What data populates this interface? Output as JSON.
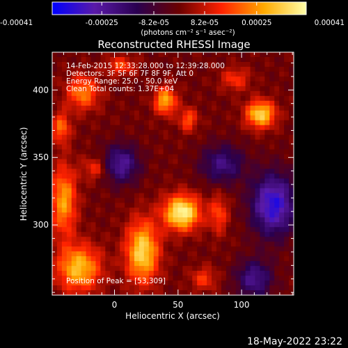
{
  "chart_data": {
    "type": "heatmap",
    "title": "Reconstructed RHESSI Image",
    "xlabel": "Heliocentric X (arcsec)",
    "ylabel": "Heliocentric Y (arcsec)",
    "xlim": [
      -49,
      141
    ],
    "ylim": [
      248,
      428
    ],
    "xticks": [
      0,
      50,
      100
    ],
    "yticks": [
      300,
      350,
      400
    ],
    "colorbar": {
      "range": [
        -0.00041,
        0.00041
      ],
      "tick_labels": [
        "-0.00041",
        "-0.00025",
        "-8.2e-05",
        "8.2e-05",
        "0.00025",
        "0.00041"
      ],
      "unit_label": "(photons cm⁻² s⁻¹ asec⁻²)",
      "colormap": [
        "#0000ff",
        "#5a1aa8",
        "#2a0050",
        "#6b0000",
        "#ff2200",
        "#ffaa00",
        "#ffffaa"
      ]
    },
    "annotations": {
      "time": "14-Feb-2015 12:33:28.000 to 12:39:28.000",
      "detectors": "Detectors: 3F 5F 6F 7F 8F 9F, Att 0",
      "energy": "Energy Range: 25.0 - 50.0 keV",
      "clean": "Clean     Total counts: 1.37E+04",
      "peak": "Position of Peak = [53,309]"
    },
    "peak": [
      53,
      309
    ],
    "sources": [
      {
        "x": 53,
        "y": 309,
        "sx": 10,
        "sy": 9,
        "amp": 1.0
      },
      {
        "x": 22,
        "y": 280,
        "sx": 9,
        "sy": 16,
        "amp": 0.85
      },
      {
        "x": -28,
        "y": 268,
        "sx": 12,
        "sy": 12,
        "amp": 0.75
      },
      {
        "x": -40,
        "y": 318,
        "sx": 7,
        "sy": 18,
        "amp": 0.65
      },
      {
        "x": -42,
        "y": 372,
        "sx": 5,
        "sy": 8,
        "amp": 0.5
      },
      {
        "x": 115,
        "y": 382,
        "sx": 8,
        "sy": 7,
        "amp": 0.85
      },
      {
        "x": 40,
        "y": 392,
        "sx": 6,
        "sy": 7,
        "amp": 0.7
      },
      {
        "x": 58,
        "y": 378,
        "sx": 5,
        "sy": 6,
        "amp": 0.45
      },
      {
        "x": -25,
        "y": 398,
        "sx": 9,
        "sy": 9,
        "amp": 0.55
      },
      {
        "x": 95,
        "y": 408,
        "sx": 8,
        "sy": 6,
        "amp": 0.35
      },
      {
        "x": 5,
        "y": 418,
        "sx": 8,
        "sy": 5,
        "amp": 0.4
      },
      {
        "x": -15,
        "y": 342,
        "sx": 7,
        "sy": 6,
        "amp": 0.35
      },
      {
        "x": 82,
        "y": 308,
        "sx": 5,
        "sy": 10,
        "amp": 0.4
      },
      {
        "x": 70,
        "y": 260,
        "sx": 7,
        "sy": 6,
        "amp": 0.35
      },
      {
        "x": 5,
        "y": 345,
        "sx": 10,
        "sy": 10,
        "amp": -0.6
      },
      {
        "x": 125,
        "y": 315,
        "sx": 12,
        "sy": 16,
        "amp": -0.85
      },
      {
        "x": 85,
        "y": 345,
        "sx": 12,
        "sy": 10,
        "amp": -0.5
      },
      {
        "x": 110,
        "y": 260,
        "sx": 10,
        "sy": 10,
        "amp": -0.55
      }
    ]
  },
  "footer": {
    "timestamp": "18-May-2022 23:22"
  }
}
